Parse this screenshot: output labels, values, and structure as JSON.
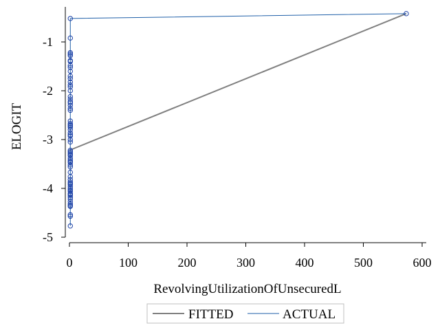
{
  "chart_data": {
    "type": "scatter",
    "xlabel": "RevolvingUtilizationOfUnsecuredL",
    "ylabel": "ELOGIT",
    "xlim": [
      -5,
      620
    ],
    "ylim": [
      -5.1,
      -0.3
    ],
    "x_ticks": [
      0,
      100,
      200,
      300,
      400,
      500,
      600
    ],
    "y_ticks": [
      -5,
      -4,
      -3,
      -2,
      -1
    ],
    "grid": false,
    "legend_placement": "bottom-center",
    "series": [
      {
        "name": "FITTED",
        "style": "line",
        "color": "#808080",
        "x": [
          0,
          573
        ],
        "y": [
          -3.22,
          -0.42
        ]
      },
      {
        "name": "ACTUAL",
        "style": "line-markers",
        "color": "#1f5fa8",
        "marker_color": "#1a3fa6",
        "x": [
          573,
          1.5,
          1.5,
          1.5,
          1.5,
          1.5,
          1.5,
          1.5,
          1.5,
          1.5,
          1.5,
          1.5,
          1.5,
          1.5,
          1.5,
          1.5,
          1.5,
          1.5,
          1.5,
          1.5,
          1.5,
          1.5,
          1.5,
          1.5,
          1.5,
          1.5,
          1.5,
          1.5,
          1.5,
          1.5,
          1.5,
          1.5,
          1.5,
          1.5,
          1.5,
          1.5,
          1.5,
          1.5,
          1.5,
          1.5,
          1.5,
          1.5,
          1.5,
          1.5,
          1.5,
          1.5,
          1.5,
          1.5,
          1.5,
          1.5,
          1.5,
          1.5,
          1.5,
          1.5,
          1.5,
          1.5,
          1.5,
          1.5,
          1.5,
          1.5,
          1.5,
          1.5,
          1.5,
          1.5,
          1.5,
          1.5,
          1.5,
          1.5
        ],
        "y": [
          -0.42,
          -0.52,
          -0.92,
          -1.22,
          -1.28,
          -1.38,
          -1.48,
          -1.52,
          -1.6,
          -1.7,
          -1.75,
          -1.82,
          -1.88,
          -1.92,
          -2.12,
          -2.17,
          -2.22,
          -2.3,
          -2.36,
          -2.4,
          -2.62,
          -2.67,
          -2.72,
          -2.8,
          -2.86,
          -2.93,
          -3.0,
          -3.05,
          -3.22,
          -3.25,
          -3.28,
          -3.38,
          -3.42,
          -3.47,
          -3.52,
          -3.56,
          -3.67,
          -3.76,
          -3.82,
          -3.87,
          -3.92,
          -3.96,
          -4.0,
          -4.03,
          -4.06,
          -4.1,
          -4.14,
          -4.18,
          -4.22,
          -4.27,
          -4.32,
          -4.37,
          -4.54,
          -4.77,
          -3.33,
          -3.31,
          -2.7,
          -2.75,
          -2.0,
          -1.4,
          -1.25,
          -4.57,
          -4.12,
          -3.9,
          -4.35,
          -2.9,
          -3.45,
          -2.25
        ]
      }
    ]
  }
}
